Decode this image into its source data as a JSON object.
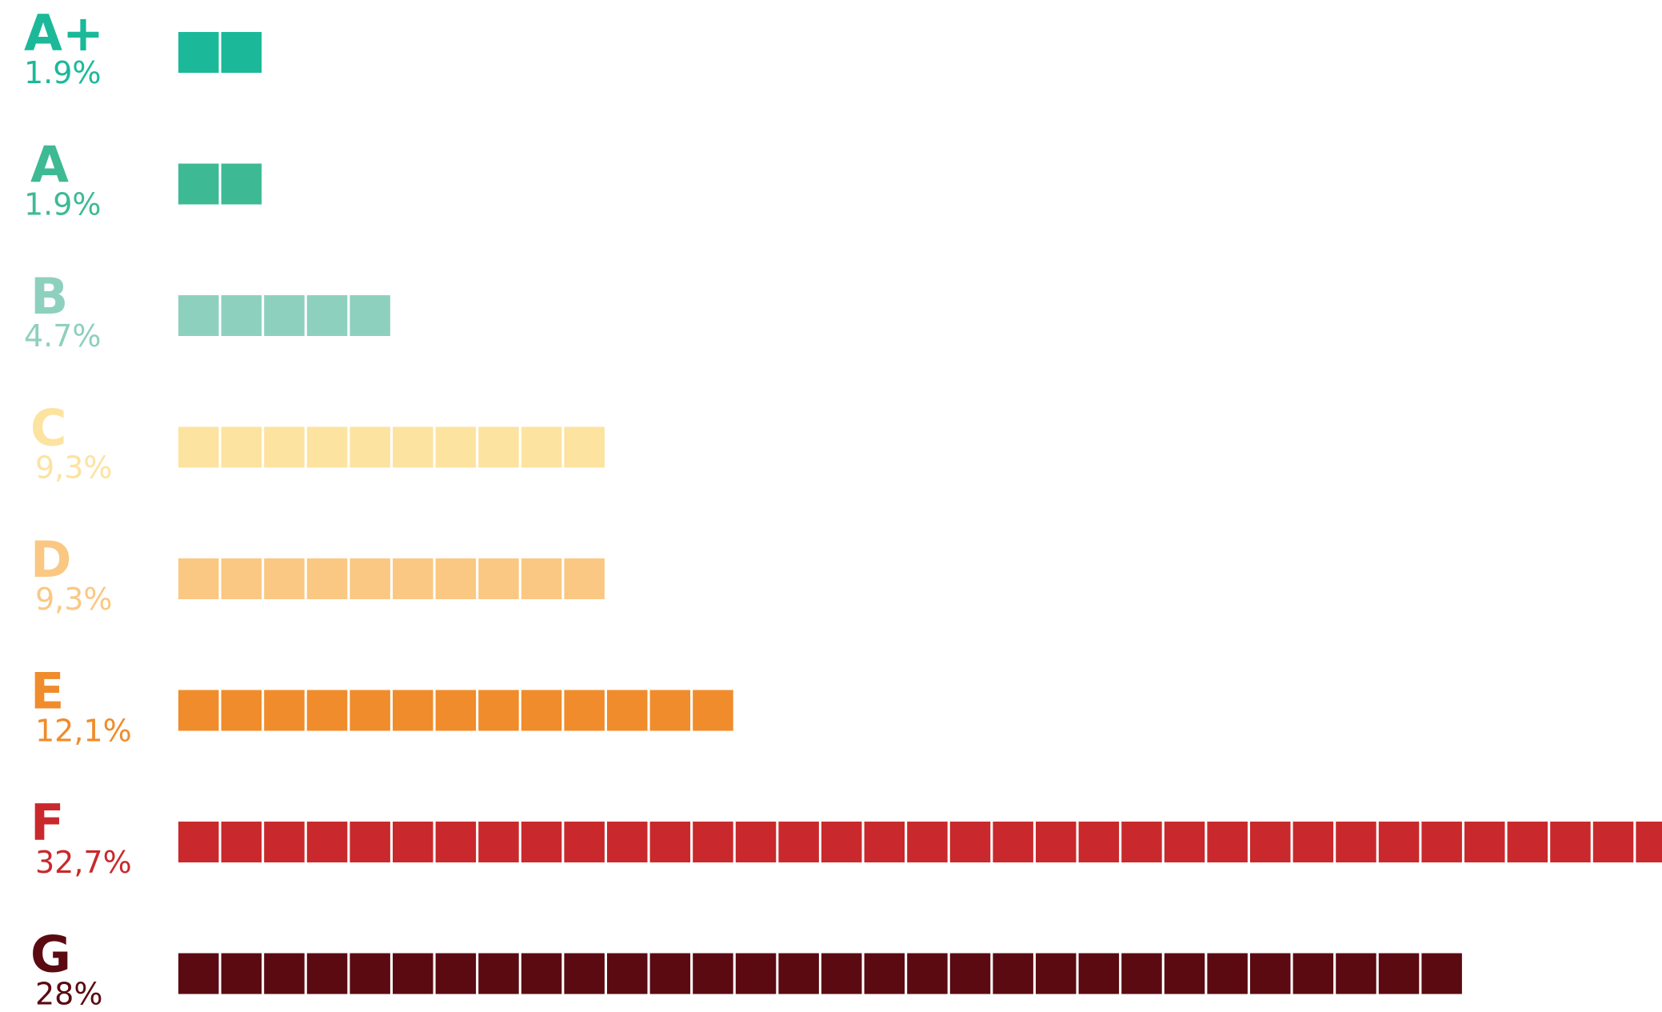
{
  "chart_data": {
    "type": "bar",
    "title": "",
    "xlabel": "",
    "ylabel": "",
    "categories": [
      "A+",
      "A",
      "B",
      "C",
      "D",
      "E",
      "F",
      "G"
    ],
    "labels": [
      "1.9%",
      "1.9%",
      "4.7%",
      "9,3%",
      "9,3%",
      "12,1%",
      "32,7%",
      "28%"
    ],
    "values": [
      1.9,
      1.9,
      4.7,
      9.3,
      9.3,
      12.1,
      32.7,
      28
    ],
    "squares": [
      2,
      2,
      5,
      10,
      10,
      13,
      35,
      30
    ],
    "colors": [
      "#1bb99a",
      "#3dba94",
      "#8ed0be",
      "#fde3a0",
      "#fac883",
      "#f08c2b",
      "#c9292c",
      "#5b0a12"
    ],
    "grid": false,
    "legend": "none"
  }
}
